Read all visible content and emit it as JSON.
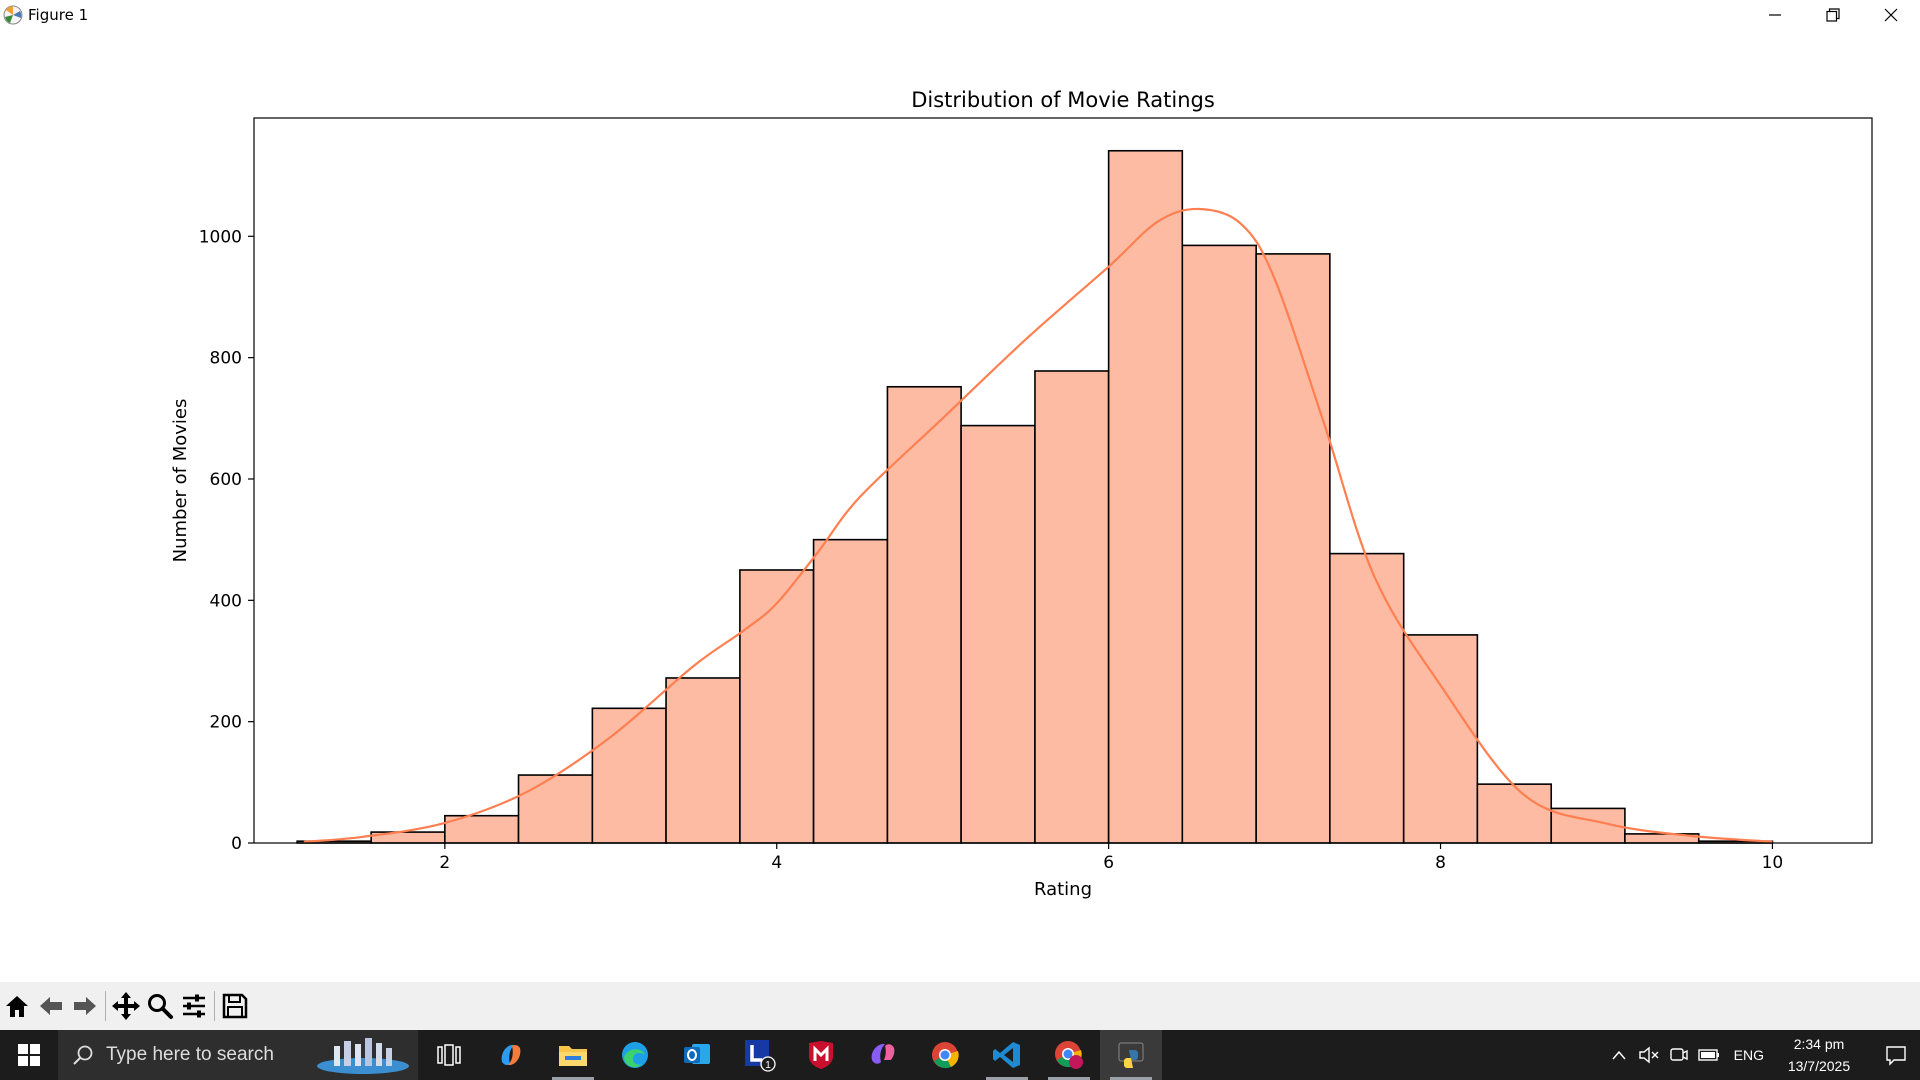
{
  "window": {
    "title": "Figure 1"
  },
  "chart_data": {
    "type": "bar",
    "title": "Distribution of Movie Ratings",
    "xlabel": "Rating",
    "ylabel": "Number of Movies",
    "xlim": [
      0.85,
      10.6
    ],
    "ylim": [
      0,
      1195
    ],
    "xticks": [
      2,
      4,
      6,
      8,
      10
    ],
    "xtick_labels": [
      "2",
      "4",
      "6",
      "8",
      "10"
    ],
    "yticks": [
      0,
      200,
      400,
      600,
      800,
      1000
    ],
    "ytick_labels": [
      "0",
      "200",
      "400",
      "600",
      "800",
      "1000"
    ],
    "bin_width": 0.444,
    "bin_edges": [
      1.11,
      1.556,
      2.0,
      2.444,
      2.889,
      3.333,
      3.778,
      4.222,
      4.667,
      5.111,
      5.556,
      6.0,
      6.444,
      6.889,
      7.333,
      7.778,
      8.222,
      8.667,
      9.111,
      9.556,
      10.0
    ],
    "values": [
      3,
      18,
      45,
      112,
      222,
      272,
      450,
      500,
      752,
      688,
      778,
      1141,
      985,
      971,
      477,
      343,
      97,
      57,
      15,
      3
    ],
    "kde_curve": {
      "x": [
        1.15,
        1.5,
        2.0,
        2.5,
        3.0,
        3.5,
        3.8,
        4.0,
        4.25,
        4.5,
        5.0,
        5.5,
        6.0,
        6.3,
        6.55,
        6.8,
        7.0,
        7.3,
        7.6,
        8.0,
        8.5,
        9.0,
        9.5,
        10.0
      ],
      "y": [
        2,
        10,
        33,
        85,
        175,
        292,
        350,
        395,
        480,
        570,
        700,
        830,
        950,
        1025,
        1045,
        1020,
        930,
        690,
        440,
        260,
        80,
        32,
        12,
        2
      ]
    },
    "bar_color": "#fdbba3",
    "edge_color": "#000000",
    "kde_color": "#ff7f50",
    "grid": false
  },
  "toolbar": {
    "icons": [
      "home-icon",
      "back-icon",
      "forward-icon",
      "pan-icon",
      "zoom-icon",
      "configure-subplots-icon",
      "save-icon"
    ]
  },
  "taskbar": {
    "search_placeholder": "Type here to search",
    "language": "ENG",
    "time": "2:34 pm",
    "date": "13/7/2025",
    "badge_count": "1"
  }
}
